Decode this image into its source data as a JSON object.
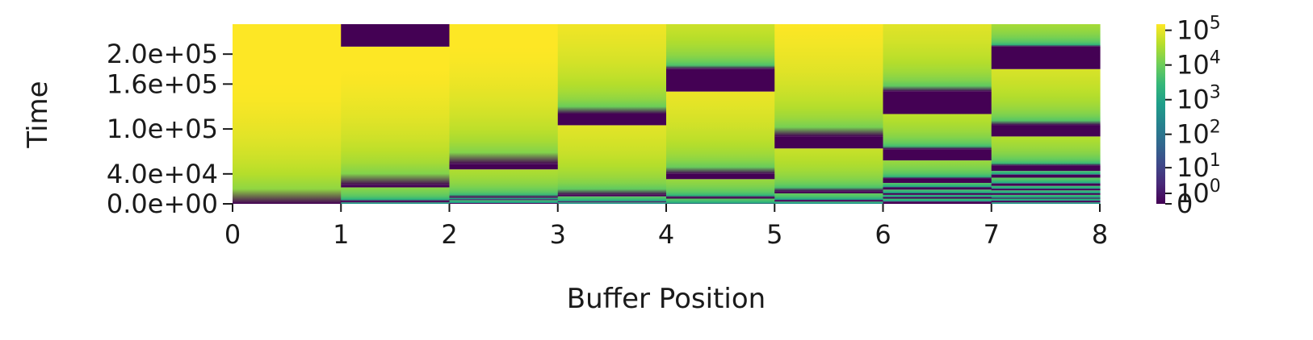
{
  "chart_data": {
    "type": "heatmap",
    "title": "",
    "xlabel": "Buffer Position",
    "ylabel": "Time",
    "x_ticks": [
      "0",
      "1",
      "2",
      "3",
      "4",
      "5",
      "6",
      "7",
      "8"
    ],
    "y_ticks": [
      {
        "value": 0,
        "label": "0.0e+00"
      },
      {
        "value": 40000,
        "label": "4.0e+04"
      },
      {
        "value": 100000,
        "label": "1.0e+05"
      },
      {
        "value": 160000,
        "label": "1.6e+05"
      },
      {
        "value": 200000,
        "label": "2.0e+05"
      }
    ],
    "x_range": [
      0,
      8
    ],
    "ylim": [
      0,
      240000
    ],
    "colormap": "viridis",
    "color_scale": "symlog",
    "colorbar": {
      "ticks": [
        {
          "value": 0,
          "base": "0",
          "exp": ""
        },
        {
          "value": 1,
          "base": "10",
          "exp": "0"
        },
        {
          "value": 10,
          "base": "10",
          "exp": "1"
        },
        {
          "value": 100,
          "base": "10",
          "exp": "2"
        },
        {
          "value": 1000,
          "base": "10",
          "exp": "3"
        },
        {
          "value": 10000,
          "base": "10",
          "exp": "4"
        },
        {
          "value": 100000,
          "base": "10",
          "exp": "5"
        }
      ],
      "max": 150000
    },
    "columns": [
      {
        "position": 0,
        "resets": []
      },
      {
        "position": 1,
        "resets": [
          [
            2000,
            4000
          ],
          [
            22000,
            25000
          ],
          [
            210000,
            240000
          ]
        ]
      },
      {
        "position": 2,
        "resets": [
          [
            0,
            1000
          ],
          [
            5000,
            6000
          ],
          [
            8000,
            9000
          ],
          [
            46000,
            53000
          ]
        ]
      },
      {
        "position": 3,
        "resets": [
          [
            2000,
            3000
          ],
          [
            10000,
            12000
          ],
          [
            105000,
            120000
          ]
        ]
      },
      {
        "position": 4,
        "resets": [
          [
            7000,
            9000
          ],
          [
            33000,
            40000
          ],
          [
            150000,
            180000
          ]
        ]
      },
      {
        "position": 5,
        "resets": [
          [
            3000,
            5000
          ],
          [
            14000,
            17000
          ],
          [
            74000,
            90000
          ]
        ]
      },
      {
        "position": 6,
        "resets": [
          [
            0,
            3000
          ],
          [
            7000,
            9000
          ],
          [
            12000,
            14000
          ],
          [
            19000,
            22000
          ],
          [
            28000,
            34000
          ],
          [
            58000,
            73000
          ],
          [
            120000,
            150000
          ]
        ]
      },
      {
        "position": 7,
        "resets": [
          [
            2000,
            4000
          ],
          [
            7000,
            8000
          ],
          [
            12000,
            14000
          ],
          [
            18000,
            20000
          ],
          [
            24000,
            27000
          ],
          [
            35000,
            39000
          ],
          [
            44000,
            51000
          ],
          [
            90000,
            105000
          ],
          [
            180000,
            210000
          ]
        ]
      }
    ]
  }
}
